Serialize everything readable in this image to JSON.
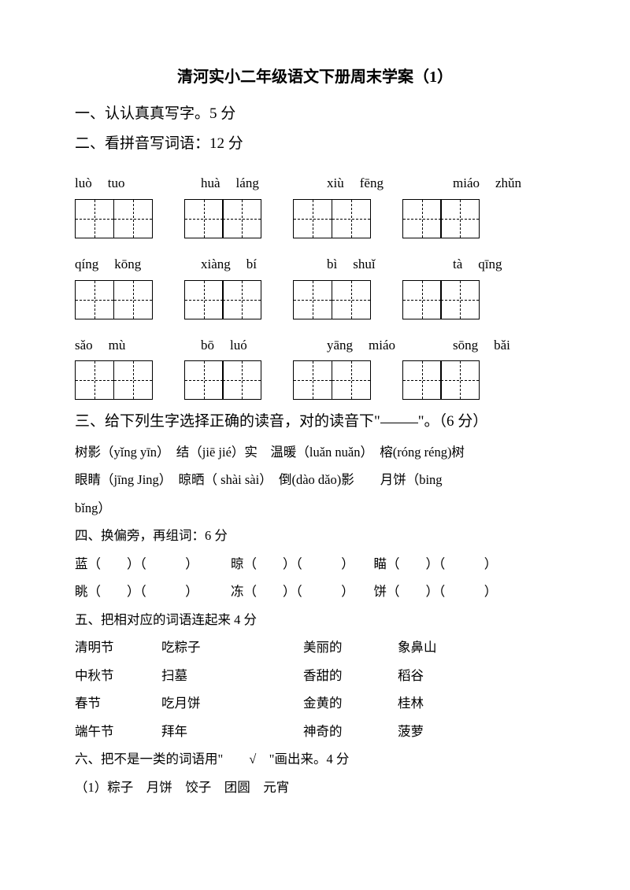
{
  "title": "清河实小二年级语文下册周末学案（1）",
  "q1": "一、认认真真写字。5 分",
  "q2": "二、看拼音写词语：12 分",
  "pinyin_rows": [
    [
      [
        "luò",
        "tuo"
      ],
      [
        "huà",
        "láng"
      ],
      [
        "xiù",
        "fēng"
      ],
      [
        "miáo",
        "zhǔn"
      ]
    ],
    [
      [
        "qíng",
        "kōng"
      ],
      [
        "xiàng",
        "bí"
      ],
      [
        "bì",
        "shuǐ"
      ],
      [
        "tà",
        "qīng"
      ]
    ],
    [
      [
        "sǎo",
        "mù"
      ],
      [
        "bō",
        "luó"
      ],
      [
        "yāng",
        "miáo"
      ],
      [
        "sōng",
        "bǎi"
      ]
    ]
  ],
  "q3": "三、给下列生字选择正确的读音，对的读音下\"",
  "q3b": "\"。（6 分）",
  "q3_line1": "树影（yǐng yīn）　结（jiē jié）实　温暖（luǎn nuǎn）　榕(róng réng)树",
  "q3_line2": "眼睛（jīng Jing）　晾晒（ shài sài）　倒(dào dǎo)影　　月饼（bing",
  "q3_line3": "bǐng）",
  "q4": "四、换偏旁，再组词：6 分",
  "q4_line1": "蓝（　　）（　　　）　　　晾（　　）（　　　）　　瞄（　　）（　　　）",
  "q4_line2": "眺（　　）（　　　）　　　冻（　　）（　　　）　　饼（　　）（　　　）",
  "q5": "五、把相对应的词语连起来 4 分",
  "q5_rows": [
    [
      "清明节",
      "吃粽子",
      "美丽的",
      "象鼻山"
    ],
    [
      "中秋节",
      "扫墓",
      "香甜的",
      "稻谷"
    ],
    [
      "春节",
      "吃月饼",
      "金黄的",
      "桂林"
    ],
    [
      "端午节",
      "拜年",
      "神奇的",
      "菠萝"
    ]
  ],
  "q6": "六、把不是一类的词语用\"　　√　\"画出来。4 分",
  "q6_line1": "（1）粽子　月饼　饺子　团圆　元宵"
}
